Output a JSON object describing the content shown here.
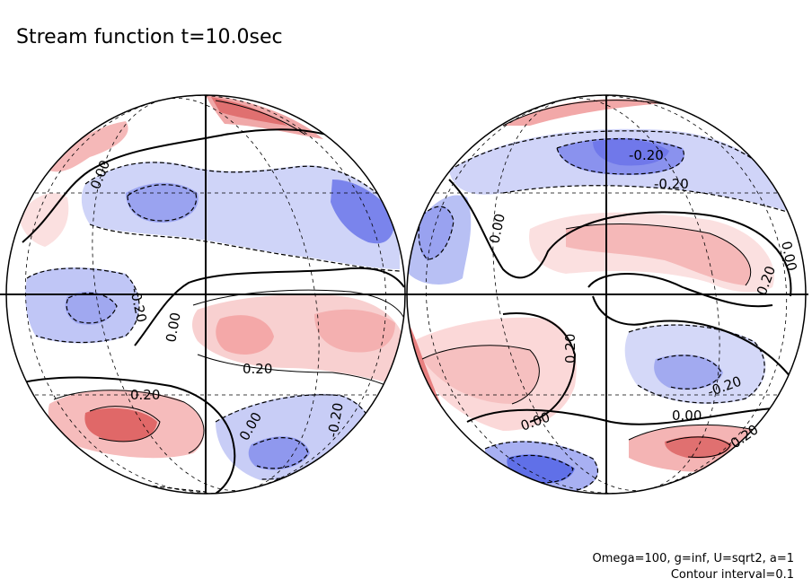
{
  "title": "Stream function t=10.0sec",
  "footer": {
    "params": "Omega=100, g=inf, U=sqrt2, a=1",
    "interval": "Contour interval=0.1"
  },
  "colors": {
    "positive": "#f0a0a0",
    "positive_strong": "#e06060",
    "negative": "#a8b0f0",
    "negative_strong": "#6070e8",
    "neutral": "#ffffff",
    "outline": "#000000"
  },
  "left_hemisphere": {
    "labels": [
      "0.00",
      "-0.20",
      "0.00",
      "0.20",
      "0.20",
      "0.00",
      "-0.20"
    ]
  },
  "right_hemisphere": {
    "labels": [
      "-0.20",
      "0.00",
      "0.00",
      "0.20",
      "-0.20",
      "0.20",
      "-0.20",
      "0.00",
      "0.20"
    ]
  }
}
